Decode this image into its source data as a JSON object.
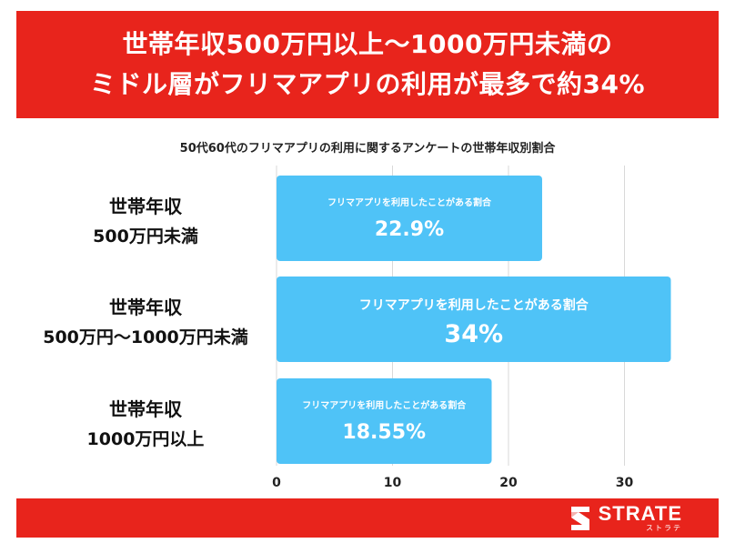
{
  "header": {
    "line1": "世帯年収500万円以上〜1000万円未満の",
    "line2": "ミドル層がフリマアプリの利用が最多で約34%"
  },
  "chart_data": {
    "type": "bar",
    "orientation": "horizontal",
    "title": "50代60代のフリマアプリの利用に関するアンケートの世帯年収別割合",
    "categories": [
      [
        "世帯年収",
        "500万円未満"
      ],
      [
        "世帯年収",
        "500万円〜1000万円未満"
      ],
      [
        "世帯年収",
        "1000万円以上"
      ]
    ],
    "series": [
      {
        "values": [
          22.9,
          34,
          18.55
        ],
        "bar_labels": [
          "フリマアプリを利用したことがある割合",
          "フリマアプリを利用したことがある割合",
          "フリマアプリを利用したことがある割合"
        ],
        "value_labels": [
          "22.9%",
          "34%",
          "18.55%"
        ]
      }
    ],
    "xlim": [
      0,
      35
    ],
    "xticks": [
      0,
      10,
      20,
      30
    ],
    "grid": true,
    "bar_color": "#4fc3f7"
  },
  "footer": {
    "logo": "STRATE",
    "logo_sub": "ストラテ"
  },
  "colors": {
    "accent": "#e8241c",
    "bar": "#4fc3f7"
  }
}
